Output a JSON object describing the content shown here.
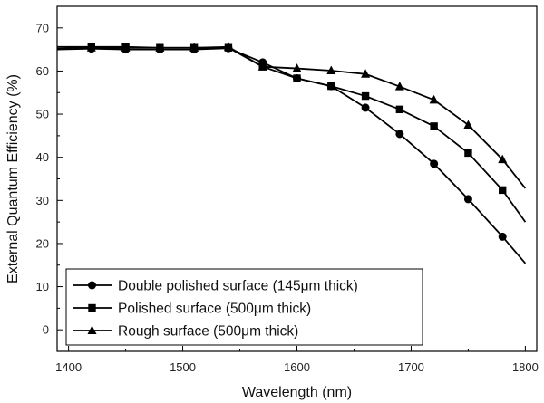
{
  "chart_data": {
    "type": "line",
    "title": "",
    "xlabel": "Wavelength (nm)",
    "ylabel": "External Quantum Efficiency (%)",
    "xlim": [
      1390,
      1810
    ],
    "ylim": [
      -5,
      75
    ],
    "xticks": [
      1400,
      1500,
      1600,
      1700,
      1800
    ],
    "yticks": [
      0,
      10,
      20,
      30,
      40,
      50,
      60,
      70
    ],
    "grid": false,
    "legend_position": "bottom-left",
    "series": [
      {
        "name": "Double polished surface (145μm thick)",
        "marker": "circle",
        "color": "#000000",
        "x": [
          1390,
          1420,
          1450,
          1480,
          1510,
          1540,
          1570,
          1600,
          1630,
          1660,
          1690,
          1720,
          1750,
          1780,
          1800
        ],
        "y": [
          65.0,
          65.2,
          65.0,
          65.0,
          65.0,
          65.3,
          62.0,
          58.3,
          56.5,
          51.5,
          45.4,
          38.5,
          30.3,
          21.6,
          15.4
        ],
        "markers_x": [
          1420,
          1450,
          1480,
          1510,
          1540,
          1570,
          1600,
          1630,
          1660,
          1690,
          1720,
          1750,
          1780
        ]
      },
      {
        "name": "Polished surface (500μm thick)",
        "marker": "square",
        "color": "#000000",
        "x": [
          1390,
          1420,
          1450,
          1480,
          1510,
          1540,
          1570,
          1600,
          1630,
          1660,
          1690,
          1720,
          1750,
          1780,
          1800
        ],
        "y": [
          65.6,
          65.6,
          65.6,
          65.4,
          65.4,
          65.4,
          61.0,
          58.3,
          56.5,
          54.2,
          51.1,
          47.2,
          41.0,
          32.4,
          25.0
        ],
        "markers_x": [
          1420,
          1450,
          1480,
          1510,
          1540,
          1570,
          1600,
          1630,
          1660,
          1690,
          1720,
          1750,
          1780
        ]
      },
      {
        "name": "Rough surface (500μm thick)",
        "marker": "triangle",
        "color": "#000000",
        "x": [
          1390,
          1420,
          1450,
          1480,
          1510,
          1540,
          1570,
          1600,
          1630,
          1660,
          1690,
          1720,
          1750,
          1780,
          1800
        ],
        "y": [
          65.2,
          65.4,
          65.4,
          65.4,
          65.4,
          65.6,
          61.0,
          60.6,
          60.1,
          59.3,
          56.4,
          53.3,
          47.5,
          39.5,
          32.8
        ],
        "markers_x": [
          1420,
          1450,
          1480,
          1510,
          1540,
          1570,
          1600,
          1630,
          1660,
          1690,
          1720,
          1750,
          1780
        ]
      }
    ]
  }
}
